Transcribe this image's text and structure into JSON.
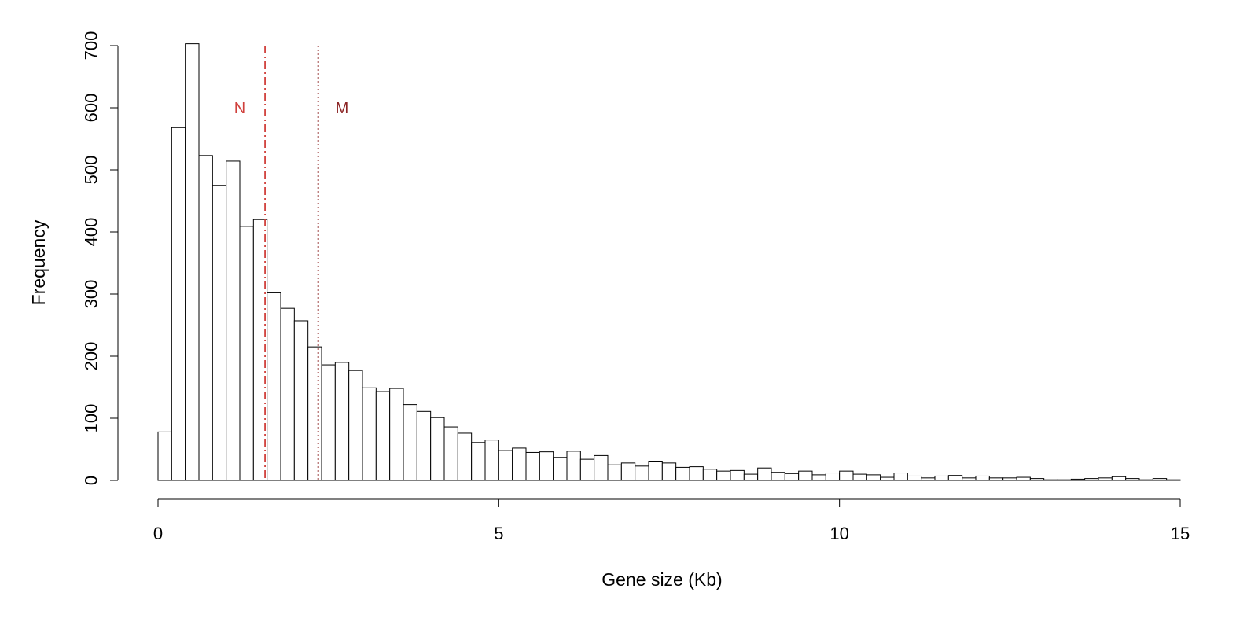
{
  "chart_data": {
    "type": "bar",
    "title": "",
    "xlabel": "Gene size (Kb)",
    "ylabel": "Frequency",
    "xlim": [
      0,
      15
    ],
    "ylim": [
      0,
      700
    ],
    "x_ticks": [
      0,
      5,
      10,
      15
    ],
    "y_ticks": [
      0,
      100,
      200,
      300,
      400,
      500,
      600,
      700
    ],
    "bin_width": 0.2,
    "bin_start": 0,
    "values": [
      78,
      568,
      703,
      523,
      475,
      514,
      409,
      420,
      302,
      277,
      257,
      215,
      186,
      190,
      177,
      149,
      143,
      148,
      122,
      111,
      101,
      86,
      76,
      61,
      65,
      48,
      52,
      45,
      46,
      37,
      47,
      34,
      40,
      25,
      28,
      23,
      31,
      28,
      21,
      22,
      18,
      15,
      16,
      10,
      20,
      13,
      11,
      15,
      9,
      12,
      15,
      10,
      9,
      5,
      12,
      7,
      4,
      7,
      8,
      4,
      7,
      4,
      4,
      5,
      3,
      1,
      1,
      2,
      3,
      4,
      6,
      3,
      1,
      3,
      1
    ],
    "grid": false,
    "legend": "none",
    "annotations": [
      {
        "label": "N",
        "x": 1.57,
        "y_text": 600,
        "x_text": 1.2,
        "color": "#d0403c",
        "linestyle": "dashdot"
      },
      {
        "label": "M",
        "x": 2.35,
        "y_text": 600,
        "x_text": 2.7,
        "color": "#8b2323",
        "linestyle": "dotted"
      }
    ]
  }
}
